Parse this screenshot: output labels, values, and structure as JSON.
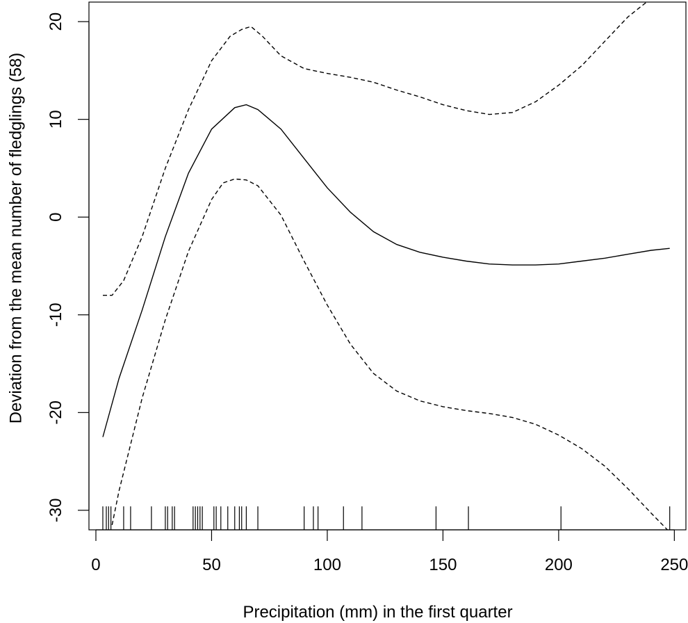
{
  "chart_data": {
    "type": "line",
    "title": "",
    "xlabel": "Precipitation (mm) in the first quarter",
    "ylabel": "Deviation from the mean number of fledglings (58)",
    "xlim": [
      -3,
      255
    ],
    "ylim": [
      -32,
      22
    ],
    "xticks": [
      0,
      50,
      100,
      150,
      200,
      250
    ],
    "yticks": [
      -30,
      -20,
      -10,
      0,
      10,
      20
    ],
    "grid": false,
    "legend": "none",
    "series": [
      {
        "style": "solid",
        "x": [
          3,
          10,
          20,
          30,
          40,
          50,
          60,
          65,
          70,
          80,
          90,
          100,
          110,
          120,
          130,
          140,
          150,
          160,
          170,
          180,
          190,
          200,
          210,
          220,
          230,
          240,
          248
        ],
        "y": [
          -22.5,
          -16.5,
          -9.5,
          -2.0,
          4.5,
          9.0,
          11.2,
          11.5,
          11.0,
          9.0,
          6.0,
          3.0,
          0.5,
          -1.5,
          -2.8,
          -3.6,
          -4.1,
          -4.5,
          -4.8,
          -4.9,
          -4.9,
          -4.8,
          -4.5,
          -4.2,
          -3.8,
          -3.4,
          -3.2
        ]
      },
      {
        "style": "dashed",
        "x": [
          3,
          7,
          12,
          20,
          30,
          40,
          50,
          58,
          63,
          67,
          72,
          80,
          90,
          100,
          110,
          120,
          130,
          140,
          150,
          160,
          170,
          180,
          190,
          200,
          210,
          220,
          230,
          238
        ],
        "y": [
          -8.0,
          -8.0,
          -6.5,
          -2.0,
          5.0,
          11.0,
          16.0,
          18.5,
          19.2,
          19.5,
          18.5,
          16.5,
          15.2,
          14.7,
          14.3,
          13.8,
          13.0,
          12.3,
          11.5,
          10.9,
          10.5,
          10.7,
          11.8,
          13.5,
          15.5,
          18.0,
          20.5,
          22.0
        ]
      },
      {
        "style": "dashed",
        "x": [
          7,
          10,
          20,
          30,
          40,
          50,
          55,
          60,
          65,
          70,
          80,
          90,
          100,
          110,
          120,
          130,
          140,
          150,
          160,
          170,
          180,
          190,
          200,
          210,
          220,
          230,
          240,
          247
        ],
        "y": [
          -31.5,
          -28.0,
          -18.5,
          -10.5,
          -3.5,
          1.8,
          3.5,
          3.9,
          3.8,
          3.2,
          0.2,
          -4.5,
          -9.0,
          -13.0,
          -16.0,
          -17.8,
          -18.8,
          -19.4,
          -19.8,
          -20.1,
          -20.5,
          -21.2,
          -22.3,
          -23.7,
          -25.5,
          -27.8,
          -30.3,
          -32.0
        ]
      }
    ],
    "rug": [
      3,
      4.5,
      5.5,
      6.5,
      12,
      15,
      24,
      30,
      31,
      33,
      34,
      42,
      43,
      44,
      45,
      46,
      51,
      52,
      54,
      57,
      60,
      62,
      63,
      65,
      70,
      90,
      94,
      96,
      107,
      115,
      147,
      161,
      201,
      248
    ]
  }
}
